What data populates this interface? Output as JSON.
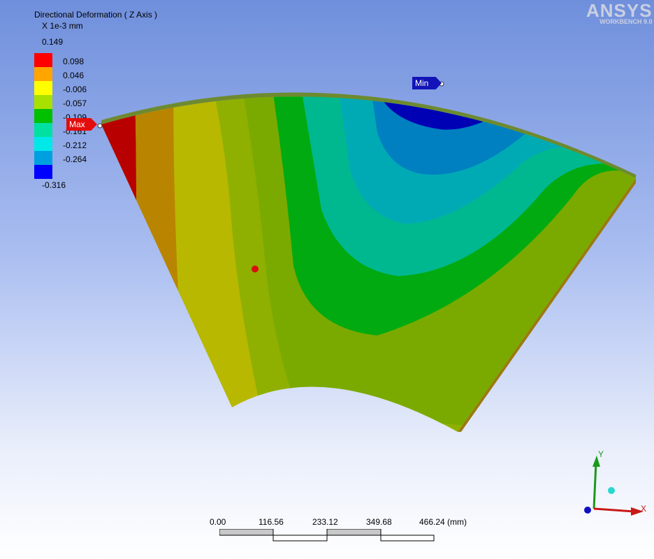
{
  "legend": {
    "title": "Directional Deformation ( Z Axis )",
    "unit": "X 1e-3 mm",
    "max_label": "0.149",
    "min_label": "-0.316",
    "levels": [
      {
        "label": "0.098",
        "color": "#ff0000"
      },
      {
        "label": "0.046",
        "color": "#ffa500"
      },
      {
        "label": "-0.006",
        "color": "#ffff00"
      },
      {
        "label": "-0.057",
        "color": "#a8e000"
      },
      {
        "label": "-0.109",
        "color": "#00c000"
      },
      {
        "label": "-0.161",
        "color": "#00e0a0"
      },
      {
        "label": "-0.212",
        "color": "#00e8e8"
      },
      {
        "label": "-0.264",
        "color": "#00a0e0"
      },
      {
        "label": "",
        "color": "#0000ff"
      }
    ]
  },
  "logo": {
    "name": "ANSYS",
    "sub": "WORKBENCH 9.0"
  },
  "probes": {
    "max": "Max",
    "min": "Min"
  },
  "scale_bar": {
    "ticks": [
      "0.00",
      "116.56",
      "233.12",
      "349.68",
      "466.24 (mm)"
    ]
  },
  "triad": {
    "x": "X",
    "y": "Y"
  },
  "colors": {
    "band1": "#b80000",
    "band2": "#c08a00",
    "band3": "#b8b800",
    "band4": "#8fb000",
    "band5": "#7aaa00",
    "band6": "#00aa10",
    "band7": "#00b890",
    "band8": "#00aab5",
    "band9": "#0080c0",
    "band10": "#0000b4"
  }
}
